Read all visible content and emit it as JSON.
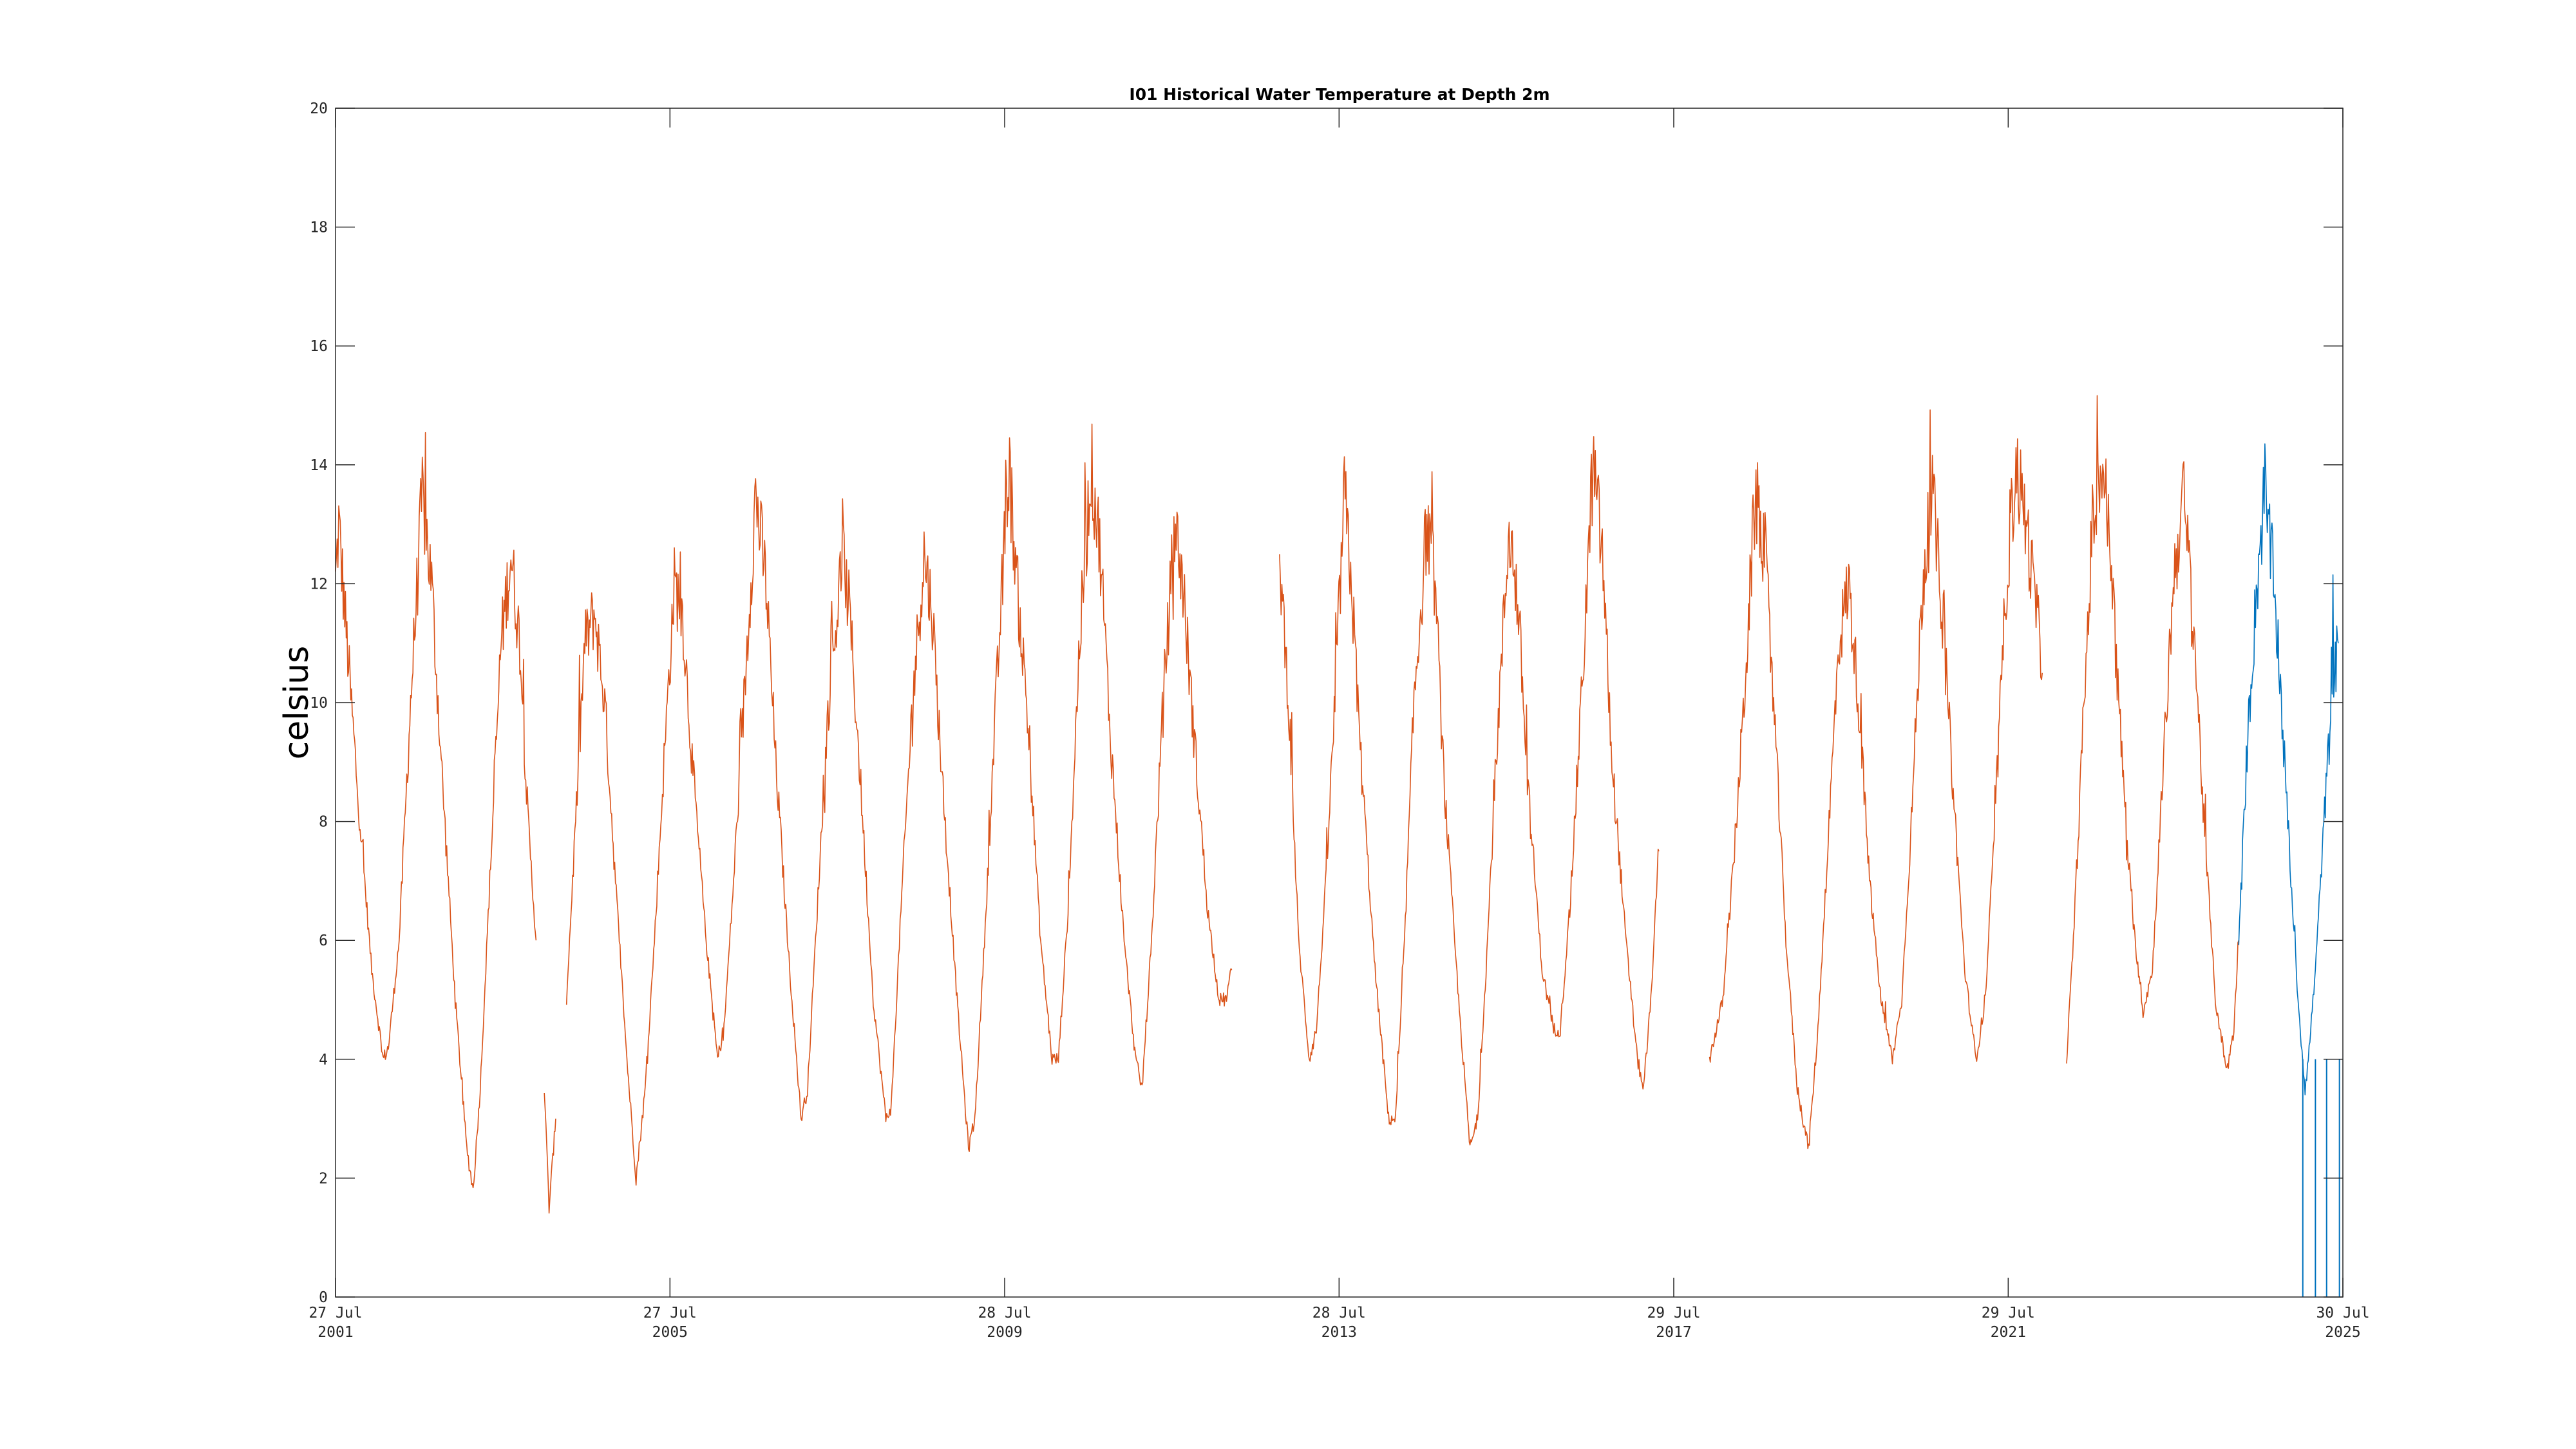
{
  "chart_data": {
    "type": "line",
    "title": "I01 Historical Water Temperature at Depth 2m",
    "xlabel": "",
    "ylabel": "celsius",
    "x_range": [
      "2001-07-27",
      "2025-07-30"
    ],
    "ylim": [
      0,
      20
    ],
    "y_ticks": [
      "0",
      "2",
      "4",
      "6",
      "8",
      "10",
      "12",
      "14",
      "16",
      "18",
      "20"
    ],
    "x_ticks": [
      {
        "date": "2001-07-27",
        "line1": "27 Jul",
        "line2": "2001"
      },
      {
        "date": "2005-07-27",
        "line1": "27 Jul",
        "line2": "2005"
      },
      {
        "date": "2009-07-28",
        "line1": "28 Jul",
        "line2": "2009"
      },
      {
        "date": "2013-07-28",
        "line1": "28 Jul",
        "line2": "2013"
      },
      {
        "date": "2017-07-29",
        "line1": "29 Jul",
        "line2": "2017"
      },
      {
        "date": "2021-07-29",
        "line1": "29 Jul",
        "line2": "2021"
      },
      {
        "date": "2025-07-30",
        "line1": "30 Jul",
        "line2": "2025"
      }
    ],
    "grid": false,
    "legend": "none",
    "series": [
      {
        "color": "#D95319",
        "segments": [
          [
            [
              "2001-07-27",
              12
            ],
            [
              "2001-08-10",
              13
            ],
            [
              "2001-09-15",
              11
            ],
            [
              "2001-11-01",
              8.5
            ],
            [
              "2002-01-01",
              5.5
            ],
            [
              "2002-02-20",
              4
            ],
            [
              "2002-03-15",
              4.2
            ],
            [
              "2002-05-01",
              6
            ],
            [
              "2002-06-20",
              10
            ],
            [
              "2002-08-10",
              13.5
            ],
            [
              "2002-09-20",
              12
            ],
            [
              "2002-11-01",
              9
            ],
            [
              "2003-01-01",
              5
            ],
            [
              "2003-02-20",
              2.5
            ],
            [
              "2003-03-20",
              1.8
            ],
            [
              "2003-04-20",
              3.5
            ],
            [
              "2003-06-01",
              7
            ],
            [
              "2003-07-20",
              11
            ],
            [
              "2003-09-01",
              12.5
            ],
            [
              "2003-10-10",
              11
            ],
            [
              "2003-11-15",
              8
            ],
            [
              "2003-12-20",
              6
            ]
          ],
          [
            [
              "2004-01-25",
              3.5
            ],
            [
              "2004-02-15",
              1.5
            ],
            [
              "2004-03-15",
              3
            ]
          ],
          [
            [
              "2004-05-01",
              5
            ],
            [
              "2004-06-10",
              8
            ],
            [
              "2004-07-20",
              11
            ],
            [
              "2004-09-01",
              11.5
            ],
            [
              "2004-10-15",
              10
            ],
            [
              "2004-12-01",
              7
            ],
            [
              "2005-01-20",
              4
            ],
            [
              "2005-03-01",
              2
            ],
            [
              "2005-04-10",
              3.5
            ],
            [
              "2005-05-20",
              6
            ],
            [
              "2005-07-01",
              9
            ],
            [
              "2005-08-15",
              12
            ],
            [
              "2005-09-20",
              11.5
            ],
            [
              "2005-11-01",
              9
            ],
            [
              "2006-01-01",
              6
            ],
            [
              "2006-02-20",
              4
            ],
            [
              "2006-03-20",
              4.5
            ],
            [
              "2006-05-01",
              7
            ],
            [
              "2006-06-15",
              10
            ],
            [
              "2006-08-05",
              13.5
            ],
            [
              "2006-09-20",
              12
            ],
            [
              "2006-11-01",
              9
            ],
            [
              "2007-01-01",
              5.5
            ],
            [
              "2007-02-20",
              3
            ],
            [
              "2007-03-20",
              3.5
            ],
            [
              "2007-05-01",
              6.5
            ],
            [
              "2007-06-20",
              10
            ],
            [
              "2007-08-20",
              12.5
            ],
            [
              "2007-09-20",
              11.5
            ],
            [
              "2007-11-01",
              9
            ],
            [
              "2008-01-01",
              5
            ],
            [
              "2008-02-25",
              3
            ],
            [
              "2008-03-20",
              3.2
            ],
            [
              "2008-05-01",
              6.5
            ],
            [
              "2008-06-20",
              10
            ],
            [
              "2008-08-10",
              12.5
            ],
            [
              "2008-09-15",
              11.5
            ],
            [
              "2008-11-01",
              8.5
            ],
            [
              "2009-01-01",
              5
            ],
            [
              "2009-02-20",
              2.5
            ],
            [
              "2009-03-20",
              3
            ],
            [
              "2009-05-01",
              6
            ],
            [
              "2009-06-20",
              10
            ],
            [
              "2009-08-15",
              14
            ],
            [
              "2009-09-20",
              12
            ],
            [
              "2009-11-01",
              10
            ],
            [
              "2010-01-01",
              6
            ],
            [
              "2010-02-20",
              4
            ],
            [
              "2010-03-20",
              4
            ],
            [
              "2010-05-01",
              6.5
            ],
            [
              "2010-06-20",
              11
            ],
            [
              "2010-08-10",
              14
            ],
            [
              "2010-09-20",
              12.5
            ],
            [
              "2010-11-01",
              9.5
            ],
            [
              "2011-01-01",
              6
            ],
            [
              "2011-02-20",
              4
            ],
            [
              "2011-03-20",
              3.5
            ],
            [
              "2011-05-01",
              6
            ],
            [
              "2011-06-20",
              10
            ],
            [
              "2011-08-10",
              13
            ],
            [
              "2011-09-15",
              12
            ],
            [
              "2011-11-01",
              9.5
            ],
            [
              "2012-01-01",
              6.5
            ],
            [
              "2012-02-20",
              5
            ],
            [
              "2012-03-20",
              5
            ],
            [
              "2012-04-15",
              5.5
            ]
          ],
          [
            [
              "2012-11-10",
              12.5
            ],
            [
              "2012-12-20",
              10
            ],
            [
              "2013-02-01",
              6
            ],
            [
              "2013-03-20",
              4
            ],
            [
              "2013-04-20",
              4.5
            ],
            [
              "2013-06-01",
              7
            ],
            [
              "2013-07-10",
              10
            ],
            [
              "2013-08-20",
              13.5
            ],
            [
              "2013-09-20",
              12
            ],
            [
              "2013-11-01",
              9
            ],
            [
              "2014-01-01",
              5.5
            ],
            [
              "2014-03-01",
              3
            ],
            [
              "2014-04-01",
              3
            ],
            [
              "2014-05-10",
              6
            ],
            [
              "2014-06-20",
              10
            ],
            [
              "2014-08-15",
              13
            ],
            [
              "2014-09-20",
              12
            ],
            [
              "2014-11-01",
              8.5
            ],
            [
              "2015-01-01",
              5
            ],
            [
              "2015-02-20",
              2.5
            ],
            [
              "2015-03-25",
              3
            ],
            [
              "2015-05-01",
              5.5
            ],
            [
              "2015-06-20",
              9.5
            ],
            [
              "2015-08-10",
              13
            ],
            [
              "2015-09-20",
              11.5
            ],
            [
              "2015-11-01",
              8.5
            ],
            [
              "2016-01-01",
              5.5
            ],
            [
              "2016-02-20",
              4.5
            ],
            [
              "2016-03-20",
              4.5
            ],
            [
              "2016-05-01",
              6.5
            ],
            [
              "2016-06-20",
              10
            ],
            [
              "2016-08-10",
              14
            ],
            [
              "2016-09-20",
              12.5
            ],
            [
              "2016-11-01",
              9
            ],
            [
              "2017-01-01",
              6
            ],
            [
              "2017-02-20",
              4
            ],
            [
              "2017-03-20",
              3.5
            ],
            [
              "2017-04-20",
              5
            ],
            [
              "2017-05-25",
              7.5
            ]
          ],
          [
            [
              "2018-01-01",
              4
            ],
            [
              "2018-03-01",
              5
            ],
            [
              "2018-04-20",
              7.5
            ],
            [
              "2018-06-01",
              10
            ],
            [
              "2018-07-20",
              13.5
            ],
            [
              "2018-09-01",
              12.5
            ],
            [
              "2018-10-15",
              9.5
            ],
            [
              "2018-12-01",
              6
            ],
            [
              "2019-01-20",
              3.5
            ],
            [
              "2019-03-10",
              2.5
            ],
            [
              "2019-04-20",
              4.5
            ],
            [
              "2019-06-01",
              7.5
            ],
            [
              "2019-07-20",
              11
            ],
            [
              "2019-09-01",
              12
            ],
            [
              "2019-10-15",
              10
            ],
            [
              "2019-12-01",
              7
            ],
            [
              "2020-01-20",
              5
            ],
            [
              "2020-03-10",
              4
            ],
            [
              "2020-04-20",
              5
            ],
            [
              "2020-06-01",
              8
            ],
            [
              "2020-07-20",
              12
            ],
            [
              "2020-09-01",
              13.5
            ],
            [
              "2020-10-15",
              11.5
            ],
            [
              "2020-12-01",
              8.5
            ],
            [
              "2021-01-20",
              5.5
            ],
            [
              "2021-03-10",
              4
            ],
            [
              "2021-04-20",
              5
            ],
            [
              "2021-06-01",
              8
            ],
            [
              "2021-07-20",
              12
            ],
            [
              "2021-09-01",
              14
            ],
            [
              "2021-10-15",
              13
            ],
            [
              "2021-12-01",
              11.5
            ],
            [
              "2021-12-25",
              10.5
            ]
          ],
          [
            [
              "2022-04-10",
              4
            ],
            [
              "2022-05-10",
              6
            ],
            [
              "2022-06-20",
              9.5
            ],
            [
              "2022-08-01",
              13
            ],
            [
              "2022-09-15",
              14
            ],
            [
              "2022-10-20",
              12.5
            ],
            [
              "2022-12-01",
              9.5
            ],
            [
              "2023-01-20",
              6.5
            ],
            [
              "2023-03-10",
              4.8
            ],
            [
              "2023-04-20",
              5.5
            ],
            [
              "2023-06-01",
              8.5
            ],
            [
              "2023-07-20",
              12
            ],
            [
              "2023-09-01",
              13.5
            ],
            [
              "2023-10-15",
              11.5
            ],
            [
              "2023-12-01",
              8
            ],
            [
              "2024-01-20",
              5
            ],
            [
              "2024-03-10",
              3.8
            ],
            [
              "2024-04-10",
              4.5
            ],
            [
              "2024-05-01",
              6
            ]
          ]
        ]
      },
      {
        "color": "#0072BD",
        "segments": [
          [
            [
              "2024-05-01",
              6
            ],
            [
              "2024-06-10",
              9.5
            ],
            [
              "2024-07-20",
              12
            ],
            [
              "2024-08-20",
              13.5
            ],
            [
              "2024-09-20",
              12.5
            ],
            [
              "2024-10-20",
              11
            ],
            [
              "2024-12-01",
              8
            ],
            [
              "2025-01-15",
              5
            ],
            [
              "2025-02-15",
              3.5
            ],
            [
              "2025-03-01",
              4
            ],
            [
              "2025-04-01",
              5.5
            ],
            [
              "2025-05-01",
              7.5
            ],
            [
              "2025-06-10",
              10
            ],
            [
              "2025-07-10",
              11
            ]
          ]
        ],
        "outliers": [
          [
            "2025-02-05",
            0
          ],
          [
            "2025-04-01",
            0
          ],
          [
            "2025-05-20",
            0
          ],
          [
            "2025-07-15",
            0
          ]
        ]
      }
    ]
  }
}
